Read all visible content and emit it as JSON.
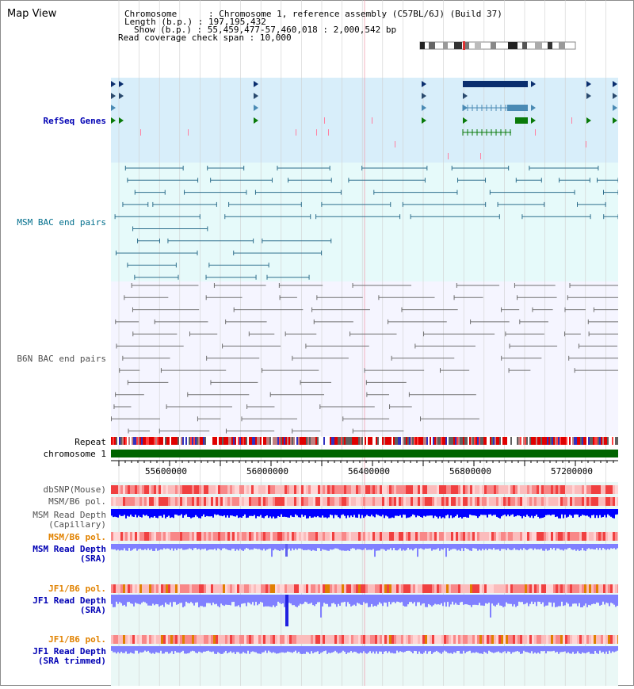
{
  "window": {
    "title": "Map View"
  },
  "info": {
    "chromosome_label": "Chromosome",
    "chromosome_value": "Chromosome 1, reference assembly (C57BL/6J) (Build 37)",
    "length_label": "Length (b.p.)",
    "length_value": "197,195,432",
    "show_label": "Show (b.p.)",
    "show_value": "55,459,477-57,460,018 : 2,000,542 bp",
    "coverage_label": "Read coverage check span",
    "coverage_value": "10,000"
  },
  "tracks": {
    "refseq": "RefSeq Genes",
    "msm_bac": "MSM BAC end pairs",
    "b6n_bac": "B6N BAC end pairs",
    "repeat": "Repeat",
    "chromosome": "chromosome 1",
    "dbsnp": "dbSNP(Mouse)",
    "msm_b6_pol_1": "MSM/B6 pol.",
    "msm_depth_cap_1": "MSM Read Depth",
    "msm_depth_cap_2": "(Capillary)",
    "msm_b6_pol_2": "MSM/B6 pol.",
    "msm_depth_sra_1": "MSM Read Depth",
    "msm_depth_sra_2": "(SRA)",
    "jf1_b6_pol_1": "JF1/B6 pol.",
    "jf1_depth_sra_1": "JF1 Read Depth",
    "jf1_depth_sra_2": "(SRA)",
    "jf1_b6_pol_2": "JF1/B6 pol.",
    "jf1_depth_trim_1": "JF1 Read Depth",
    "jf1_depth_trim_2": "(SRA trimmed)"
  },
  "axis": {
    "ticks": [
      "55600000",
      "56000000",
      "56400000",
      "56800000",
      "57200000"
    ]
  },
  "colors": {
    "refseq_bg": "#d8eefa",
    "bac_bg": "#e6fafa",
    "lower_bg": "#f5f5ff",
    "grid": "#cfcfcf",
    "gene_dark": "#0a2e6e",
    "gene_mid": "#4a8ab4",
    "gene_green": "#0a7a0a",
    "msm_pair": "#2e6e8c",
    "b6n_pair": "#707070",
    "chromosome": "#006400",
    "depth_blue": "#0000ff",
    "depth_light": "#8080ff"
  }
}
